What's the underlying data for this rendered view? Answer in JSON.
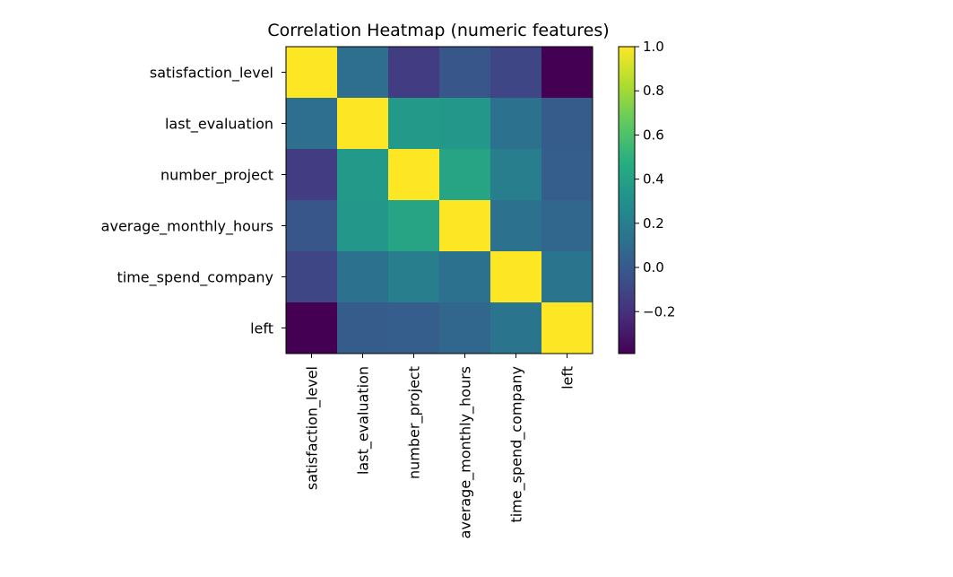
{
  "chart_data": {
    "type": "heatmap",
    "title": "Correlation Heatmap (numeric features)",
    "xlabel": "",
    "ylabel": "",
    "x_categories": [
      "satisfaction_level",
      "last_evaluation",
      "number_project",
      "average_monthly_hours",
      "time_spend_company",
      "left"
    ],
    "y_categories": [
      "satisfaction_level",
      "last_evaluation",
      "number_project",
      "average_monthly_hours",
      "time_spend_company",
      "left"
    ],
    "matrix": [
      [
        1.0,
        0.11,
        -0.14,
        -0.02,
        -0.1,
        -0.39
      ],
      [
        0.11,
        1.0,
        0.35,
        0.34,
        0.13,
        0.01
      ],
      [
        -0.14,
        0.35,
        1.0,
        0.42,
        0.2,
        0.02
      ],
      [
        -0.02,
        0.34,
        0.42,
        1.0,
        0.13,
        0.07
      ],
      [
        -0.1,
        0.13,
        0.2,
        0.13,
        1.0,
        0.14
      ],
      [
        -0.39,
        0.01,
        0.02,
        0.07,
        0.14,
        1.0
      ]
    ],
    "colormap": "viridis",
    "colorbar": {
      "vmin": -0.39,
      "vmax": 1.0,
      "ticks": [
        1.0,
        0.8,
        0.6,
        0.4,
        0.2,
        0.0,
        -0.2
      ],
      "tick_labels": [
        "1.0",
        "0.8",
        "0.6",
        "0.4",
        "0.2",
        "0.0",
        "−0.2"
      ]
    },
    "grid": false
  }
}
